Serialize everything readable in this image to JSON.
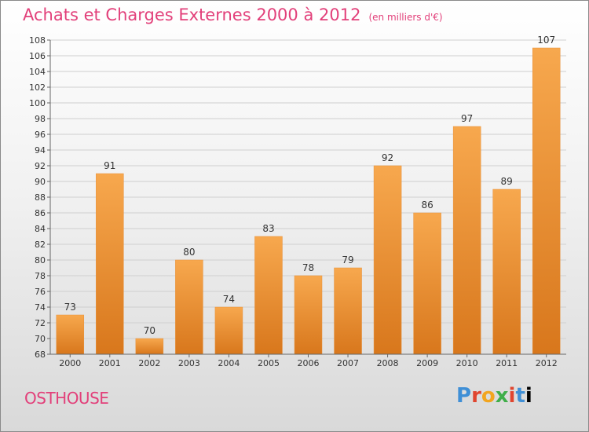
{
  "title": "Achats et Charges Externes 2000 à 2012",
  "unit": "(en milliers d'€)",
  "location": "OSTHOUSE",
  "logo": "Proxiti",
  "colors": {
    "bar": "#f29a3a",
    "bar_dark": "#d97a1e",
    "title": "#e2407a"
  },
  "chart_data": {
    "type": "bar",
    "title": "Achats et Charges Externes 2000 à 2012",
    "categories": [
      "2000",
      "2001",
      "2002",
      "2003",
      "2004",
      "2005",
      "2006",
      "2007",
      "2008",
      "2009",
      "2010",
      "2011",
      "2012"
    ],
    "values": [
      73,
      91,
      70,
      80,
      74,
      83,
      78,
      79,
      92,
      86,
      97,
      89,
      107
    ],
    "xlabel": "",
    "ylabel": "",
    "ylim": [
      68,
      108
    ],
    "yticks": [
      68,
      70,
      72,
      74,
      76,
      78,
      80,
      82,
      84,
      86,
      88,
      90,
      92,
      94,
      96,
      98,
      100,
      102,
      104,
      106,
      108
    ],
    "grid": true,
    "legend": "none"
  }
}
